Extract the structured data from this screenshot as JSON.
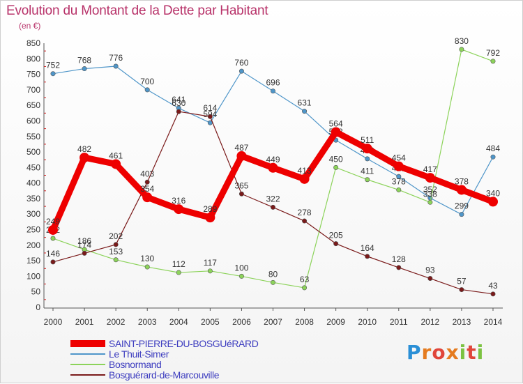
{
  "title": "Evolution du Montant de la Dette par Habitant",
  "subtitle": "(en €)",
  "logo": {
    "letters": [
      "P",
      "r",
      "o",
      "x",
      "i",
      "t",
      "i"
    ]
  },
  "chart_data": {
    "type": "line",
    "x": [
      2000,
      2001,
      2002,
      2003,
      2004,
      2005,
      2006,
      2007,
      2008,
      2009,
      2010,
      2011,
      2012,
      2013,
      2014
    ],
    "ylim": [
      0,
      850
    ],
    "yticks": [
      0,
      50,
      100,
      150,
      200,
      250,
      300,
      350,
      400,
      450,
      500,
      550,
      600,
      650,
      700,
      750,
      800,
      850
    ],
    "grid": false,
    "legend_position": "bottom-left",
    "series": [
      {
        "name": "SAINT-PIERRE-DU-BOSGUéRARD",
        "color": "#ee0000",
        "width": 9,
        "values": [
          249,
          482,
          461,
          354,
          316,
          289,
          487,
          449,
          413,
          564,
          511,
          454,
          417,
          378,
          340
        ]
      },
      {
        "name": "Le Thuit-Simer",
        "color": "#4f96c9",
        "width": 1.2,
        "values": [
          752,
          768,
          776,
          700,
          641,
          594,
          760,
          696,
          631,
          538,
          478,
          421,
          352,
          299,
          484
        ]
      },
      {
        "name": "Bosnormand",
        "color": "#8cd35a",
        "width": 1.2,
        "values": [
          222,
          186,
          153,
          130,
          112,
          117,
          100,
          80,
          63,
          450,
          411,
          378,
          338,
          830,
          792
        ]
      },
      {
        "name": "Bosguérard-de-Marcouville",
        "color": "#7a1a1a",
        "width": 1.2,
        "values": [
          146,
          174,
          202,
          403,
          630,
          614,
          365,
          322,
          278,
          205,
          164,
          128,
          93,
          57,
          43
        ]
      }
    ]
  }
}
